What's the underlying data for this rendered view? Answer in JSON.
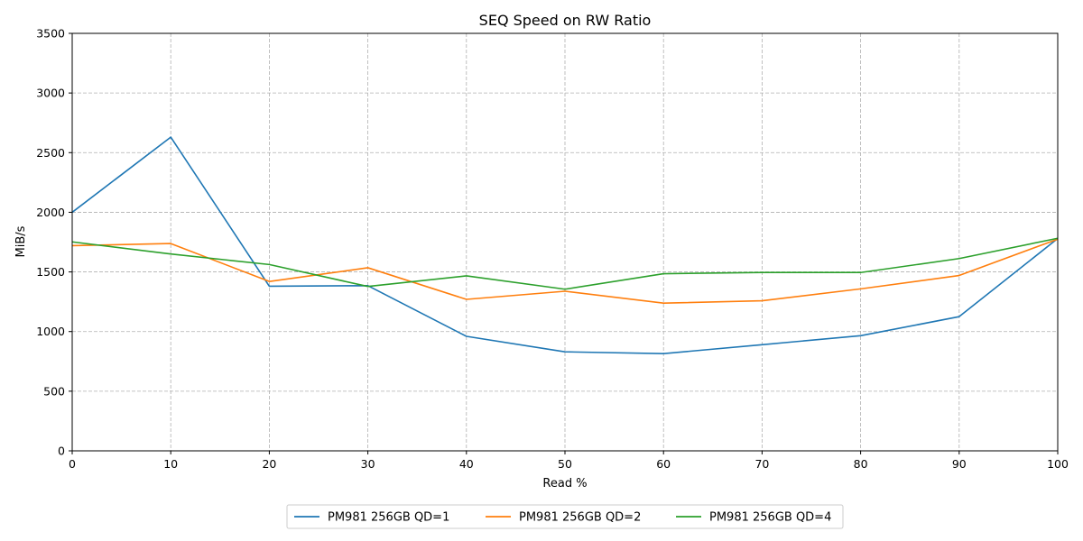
{
  "chart_data": {
    "type": "line",
    "title": "SEQ Speed on RW Ratio",
    "xlabel": "Read %",
    "ylabel": "MiB/s",
    "x": [
      0,
      10,
      20,
      30,
      40,
      50,
      60,
      70,
      80,
      90,
      100
    ],
    "xlim": [
      0,
      100
    ],
    "ylim": [
      0,
      3500
    ],
    "xticks": [
      0,
      10,
      20,
      30,
      40,
      50,
      60,
      70,
      80,
      90,
      100
    ],
    "yticks": [
      0,
      500,
      1000,
      1500,
      2000,
      2500,
      3000,
      3500
    ],
    "grid": true,
    "legend_position": "bottom-center",
    "series": [
      {
        "name": "PM981 256GB QD=1",
        "color": "#1f77b4",
        "values": [
          2000,
          2630,
          1380,
          1385,
          960,
          830,
          815,
          890,
          965,
          1125,
          1780
        ]
      },
      {
        "name": "PM981 256GB QD=2",
        "color": "#ff7f0e",
        "values": [
          1720,
          1738,
          1420,
          1535,
          1270,
          1338,
          1238,
          1258,
          1358,
          1470,
          1775
        ]
      },
      {
        "name": "PM981 256GB QD=4",
        "color": "#2ca02c",
        "values": [
          1752,
          1650,
          1562,
          1378,
          1467,
          1355,
          1485,
          1495,
          1495,
          1612,
          1782
        ]
      }
    ]
  }
}
